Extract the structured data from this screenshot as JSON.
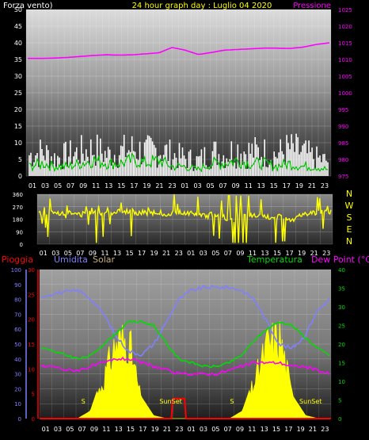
{
  "header": {
    "left_label": "Forza vento)",
    "title": "24 hour graph day : Luglio 04 2020",
    "right_label": "Pressione"
  },
  "colors": {
    "background": "#000000",
    "wind_gust": "#ffffff",
    "wind_avg": "#00c800",
    "pressure": "#ff00ff",
    "direction": "#ffff00",
    "solar": "#ffff00",
    "humidity": "#8080ff",
    "temperature": "#00dd00",
    "dewpoint": "#ff00ff",
    "rain": "#ff0000",
    "title": "#ffff00"
  },
  "panel2": {
    "compass": [
      "N",
      "W",
      "S",
      "E",
      "N"
    ]
  },
  "panel3": {
    "labels": {
      "rain": "Pioggia",
      "humidity": "Umidita",
      "solar": "Solar",
      "temperature": "Temperatura",
      "dewpoint": "Dew Point (°C)"
    },
    "sunset_labels": [
      "S",
      "SunSet",
      "S",
      "SunSet"
    ]
  },
  "chart_data": [
    {
      "type": "line",
      "title": "24 hour graph day : Luglio 04 2020",
      "x_ticks": [
        "01",
        "03",
        "05",
        "07",
        "09",
        "11",
        "13",
        "15",
        "17",
        "19",
        "21",
        "23",
        "01",
        "03",
        "05",
        "07",
        "09",
        "11",
        "13",
        "15",
        "17",
        "19",
        "21",
        "23"
      ],
      "y_left": {
        "ticks": [
          0,
          5,
          10,
          15,
          20,
          25,
          30,
          35,
          40,
          45,
          50
        ],
        "ylim": [
          0,
          50
        ]
      },
      "y_right": {
        "ticks": [
          975,
          980,
          985,
          990,
          995,
          1000,
          1005,
          1010,
          1015,
          1020,
          1025
        ],
        "ylim": [
          975,
          1025
        ]
      },
      "series": [
        {
          "name": "Pressione",
          "axis": "right",
          "values": [
            1010.3,
            1010.3,
            1010.4,
            1010.6,
            1010.9,
            1011.2,
            1011.4,
            1011.3,
            1011.4,
            1011.7,
            1012.0,
            1013.6,
            1012.8,
            1011.5,
            1012.1,
            1012.8,
            1013.0,
            1013.2,
            1013.4,
            1013.4,
            1013.3,
            1013.7,
            1014.5,
            1015.0
          ]
        },
        {
          "axis": "left",
          "values": [
            7,
            8,
            6,
            7,
            8,
            9,
            7,
            8,
            9,
            8,
            9,
            7,
            6,
            5,
            8,
            7,
            9,
            8,
            8,
            7,
            9,
            8,
            6,
            5
          ]
        },
        {
          "axis": "left",
          "values": [
            3,
            4,
            3,
            3,
            4,
            5,
            4,
            4,
            5,
            4,
            5,
            3,
            3,
            2,
            4,
            4,
            5,
            4,
            4,
            3,
            4,
            3,
            3,
            2
          ]
        }
      ]
    },
    {
      "type": "scatter",
      "x_ticks": [
        "01",
        "03",
        "05",
        "07",
        "09",
        "11",
        "13",
        "15",
        "17",
        "19",
        "21",
        "23",
        "01",
        "03",
        "05",
        "07",
        "09",
        "11",
        "13",
        "15",
        "17",
        "19",
        "21",
        "23"
      ],
      "y_ticks": [
        0,
        90,
        180,
        270,
        360
      ],
      "ylim": [
        0,
        360
      ],
      "series": [
        {
          "axis": "left",
          "values": [
            220,
            225,
            230,
            215,
            220,
            225,
            230,
            240,
            225,
            230,
            220,
            230,
            225,
            200,
            220,
            180,
            210,
            200,
            190,
            200,
            180,
            220,
            230,
            235
          ]
        }
      ]
    },
    {
      "type": "line",
      "x_ticks": [
        "01",
        "03",
        "05",
        "07",
        "09",
        "11",
        "13",
        "15",
        "17",
        "19",
        "21",
        "23",
        "01",
        "03",
        "05",
        "07",
        "09",
        "11",
        "13",
        "15",
        "17",
        "19",
        "21",
        "23"
      ],
      "y_humidity": {
        "ticks": [
          0,
          10,
          20,
          30,
          40,
          50,
          60,
          70,
          80,
          90,
          100
        ],
        "ylim": [
          0,
          100
        ]
      },
      "y_rain": {
        "ticks": [
          0,
          5,
          10,
          15,
          20,
          25,
          30
        ],
        "ylim": [
          0,
          30
        ]
      },
      "y_temperature": {
        "ticks": [
          0,
          5,
          10,
          15,
          20,
          25,
          30,
          35,
          40
        ],
        "ylim": [
          0,
          40
        ]
      },
      "series": [
        {
          "name": "Umidita",
          "values": [
            82,
            84,
            85,
            86,
            80,
            70,
            55,
            45,
            43,
            50,
            65,
            80,
            86,
            88,
            88,
            88,
            86,
            80,
            65,
            50,
            47,
            55,
            72,
            80
          ]
        },
        {
          "name": "Temperatura",
          "values": [
            19,
            18,
            17,
            16,
            17,
            20,
            23,
            26,
            26,
            25,
            20,
            16,
            15,
            14,
            14,
            15,
            17,
            21,
            24,
            26,
            25,
            22,
            19,
            17
          ]
        },
        {
          "name": "Dew Point (°C)",
          "values": [
            14,
            14,
            13,
            13,
            14,
            15,
            16,
            16,
            15,
            14,
            13,
            12,
            12,
            12,
            12,
            13,
            14,
            15,
            15,
            15,
            14,
            14,
            13,
            12
          ]
        },
        {
          "name": "Solar",
          "values": [
            0,
            0,
            0,
            0,
            5,
            30,
            60,
            65,
            15,
            2,
            0,
            0,
            0,
            0,
            0,
            0,
            5,
            30,
            60,
            65,
            15,
            2,
            0,
            0
          ]
        },
        {
          "name": "Pioggia",
          "values": [
            0,
            0,
            0,
            0,
            0,
            0,
            0,
            0,
            0,
            0,
            0,
            4,
            0,
            0,
            0,
            0,
            0,
            0,
            0,
            0,
            0,
            0,
            0,
            0
          ]
        }
      ]
    }
  ]
}
